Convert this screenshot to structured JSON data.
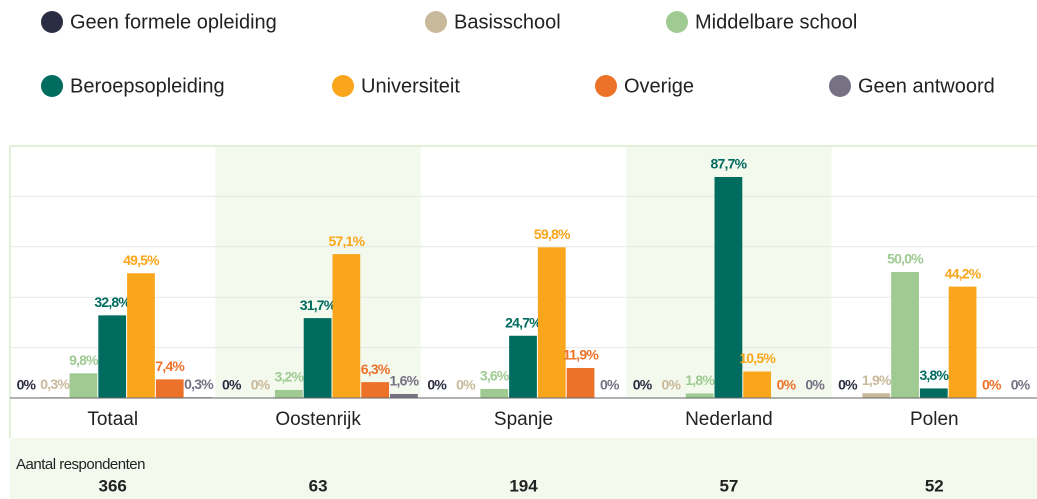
{
  "chart_data": {
    "type": "bar",
    "categories": [
      "Totaal",
      "Oostenrijk",
      "Spanje",
      "Nederland",
      "Polen"
    ],
    "series": [
      {
        "name": "Geen formele opleiding",
        "color": "#2b2d42",
        "values": [
          0,
          0,
          0,
          0,
          0
        ],
        "value_labels": [
          "0%",
          "0%",
          "0%",
          "0%",
          "0%"
        ]
      },
      {
        "name": "Basisschool",
        "color": "#c9b99b",
        "values": [
          0.3,
          0,
          0,
          0,
          1.9
        ],
        "value_labels": [
          "0,3%",
          "0%",
          "0%",
          "0%",
          "1,9%"
        ]
      },
      {
        "name": "Middelbare school",
        "color": "#9fcb92",
        "values": [
          9.8,
          3.2,
          3.6,
          1.8,
          50.0
        ],
        "value_labels": [
          "9,8%",
          "3,2%",
          "3,6%",
          "1,8%",
          "50,0%"
        ]
      },
      {
        "name": "Beroepsopleiding",
        "color": "#006b5f",
        "values": [
          32.8,
          31.7,
          24.7,
          87.7,
          3.8
        ],
        "value_labels": [
          "32,8%",
          "31,7%",
          "24,7%",
          "87,7%",
          "3,8%"
        ]
      },
      {
        "name": "Universiteit",
        "color": "#f9a61c",
        "values": [
          49.5,
          57.1,
          59.8,
          10.5,
          44.2
        ],
        "value_labels": [
          "49,5%",
          "57,1%",
          "59,8%",
          "10,5%",
          "44,2%"
        ]
      },
      {
        "name": "Overige",
        "color": "#ec722a",
        "values": [
          7.4,
          6.3,
          11.9,
          0,
          0
        ],
        "value_labels": [
          "7,4%",
          "6,3%",
          "11,9%",
          "0%",
          "0%"
        ]
      },
      {
        "name": "Geen antwoord",
        "color": "#777184",
        "values": [
          0.3,
          1.6,
          0,
          0,
          0
        ],
        "value_labels": [
          "0,3%",
          "1,6%",
          "0%",
          "0%",
          "0%"
        ]
      }
    ],
    "ylim": [
      0,
      100
    ],
    "yticks": [
      0,
      20,
      40,
      60,
      80,
      100
    ],
    "grid": true,
    "respondents": {
      "label": "Aantal respondenten",
      "values": [
        366,
        63,
        194,
        57,
        52
      ]
    }
  }
}
